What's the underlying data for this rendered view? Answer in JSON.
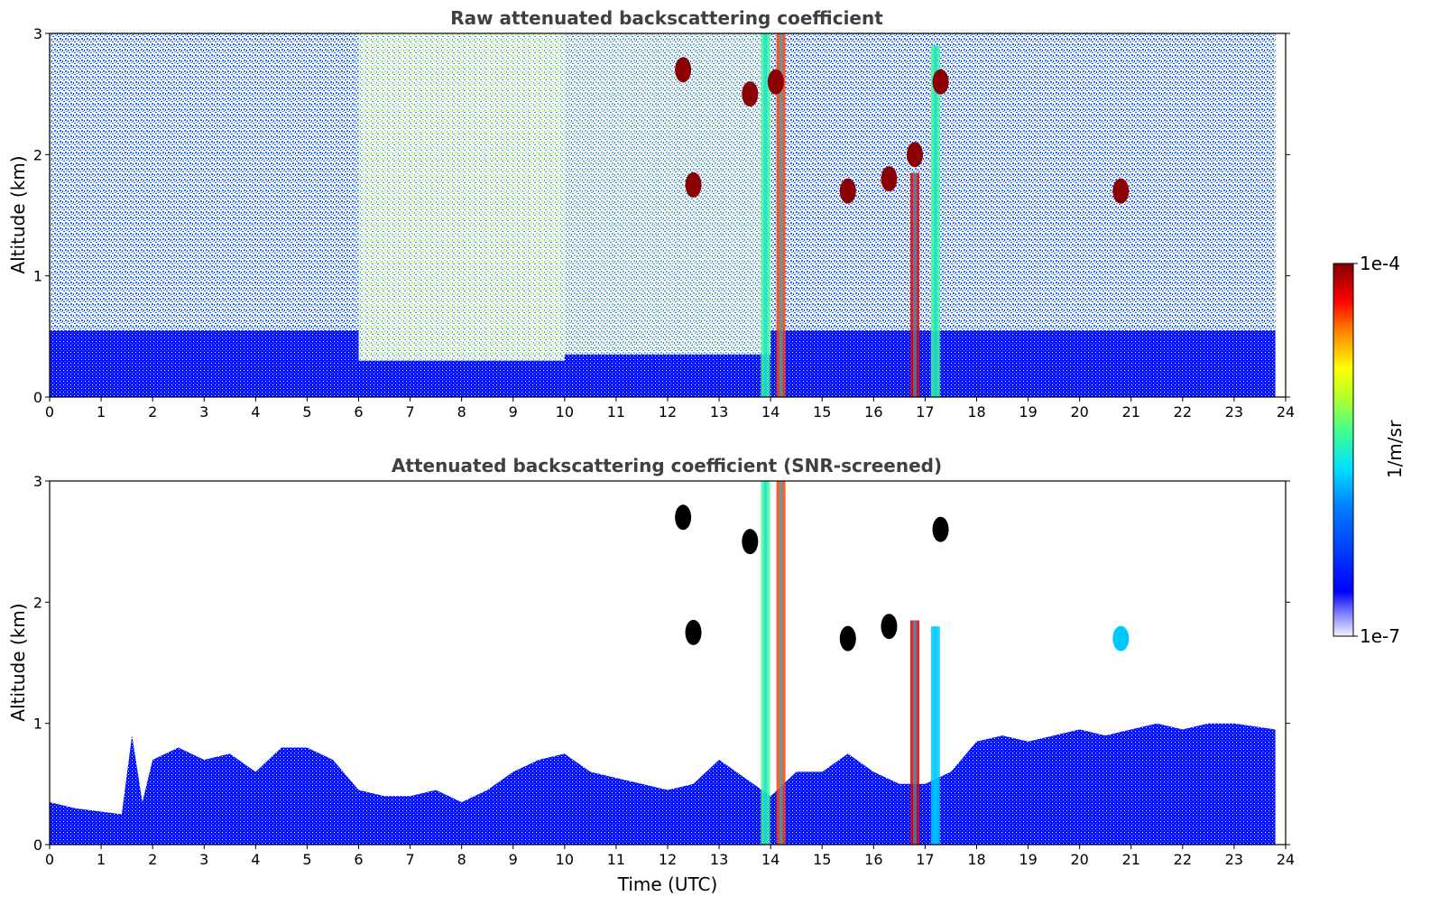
{
  "chart_data": [
    {
      "type": "heatmap",
      "title": "Raw attenuated backscattering coefficient",
      "xlabel": "",
      "ylabel": "Altitude (km)",
      "xlim": [
        0,
        24
      ],
      "ylim": [
        0,
        3
      ],
      "x_ticks": [
        "0",
        "1",
        "2",
        "3",
        "4",
        "5",
        "6",
        "7",
        "8",
        "9",
        "10",
        "11",
        "12",
        "13",
        "14",
        "15",
        "16",
        "17",
        "18",
        "19",
        "20",
        "21",
        "22",
        "23",
        "24"
      ],
      "y_ticks": [
        "0",
        "1",
        "2",
        "3"
      ],
      "data_end_time": 23.8,
      "background_layer": [
        {
          "x_start": 0,
          "x_end": 6,
          "top_km": 0.55,
          "noise_fill": "blue"
        },
        {
          "x_start": 6,
          "x_end": 10,
          "top_km": 0.3,
          "noise_fill": "green-yellow"
        },
        {
          "x_start": 10,
          "x_end": 14,
          "top_km": 0.35,
          "noise_fill": "cyan-blue"
        },
        {
          "x_start": 14,
          "x_end": 23.8,
          "top_km": 0.55,
          "noise_fill": "blue"
        }
      ],
      "plumes": [
        {
          "x": 13.9,
          "bottom_km": 0,
          "top_km": 3,
          "level": "cyan-yellow"
        },
        {
          "x": 14.2,
          "bottom_km": 0,
          "top_km": 3,
          "level": "cyan-red"
        },
        {
          "x": 16.8,
          "bottom_km": 0,
          "top_km": 1.85,
          "level": "red"
        },
        {
          "x": 17.2,
          "bottom_km": 0,
          "top_km": 2.9,
          "level": "cyan-yellow"
        }
      ],
      "cloud_patches": [
        {
          "x": 12.3,
          "y_km": 2.7,
          "level": "dark-red"
        },
        {
          "x": 12.5,
          "y_km": 1.75,
          "level": "dark-red"
        },
        {
          "x": 13.6,
          "y_km": 2.5,
          "level": "dark-red"
        },
        {
          "x": 14.1,
          "y_km": 2.6,
          "level": "dark-red"
        },
        {
          "x": 15.5,
          "y_km": 1.7,
          "level": "dark-red"
        },
        {
          "x": 16.3,
          "y_km": 1.8,
          "level": "dark-red"
        },
        {
          "x": 16.8,
          "y_km": 2.0,
          "level": "dark-red"
        },
        {
          "x": 17.3,
          "y_km": 2.6,
          "level": "dark-red"
        },
        {
          "x": 20.8,
          "y_km": 1.7,
          "level": "dark-red"
        }
      ]
    },
    {
      "type": "heatmap",
      "title": "Attenuated backscattering coefficient (SNR-screened)",
      "xlabel": "Time (UTC)",
      "ylabel": "Altitude (km)",
      "xlim": [
        0,
        24
      ],
      "ylim": [
        0,
        3
      ],
      "x_ticks": [
        "0",
        "1",
        "2",
        "3",
        "4",
        "5",
        "6",
        "7",
        "8",
        "9",
        "10",
        "11",
        "12",
        "13",
        "14",
        "15",
        "16",
        "17",
        "18",
        "19",
        "20",
        "21",
        "22",
        "23",
        "24"
      ],
      "y_ticks": [
        "0",
        "1",
        "2",
        "3"
      ],
      "data_end_time": 23.8,
      "boundary_layer_top_km": [
        [
          0,
          0.35
        ],
        [
          0.5,
          0.3
        ],
        [
          1.4,
          0.25
        ],
        [
          1.6,
          0.9
        ],
        [
          1.8,
          0.35
        ],
        [
          2.0,
          0.7
        ],
        [
          2.5,
          0.8
        ],
        [
          3.0,
          0.7
        ],
        [
          3.5,
          0.75
        ],
        [
          4.0,
          0.6
        ],
        [
          4.5,
          0.8
        ],
        [
          5.0,
          0.8
        ],
        [
          5.5,
          0.7
        ],
        [
          6.0,
          0.45
        ],
        [
          6.5,
          0.4
        ],
        [
          7.0,
          0.4
        ],
        [
          7.5,
          0.45
        ],
        [
          8.0,
          0.35
        ],
        [
          8.5,
          0.45
        ],
        [
          9.0,
          0.6
        ],
        [
          9.5,
          0.7
        ],
        [
          10.0,
          0.75
        ],
        [
          10.5,
          0.6
        ],
        [
          11.0,
          0.55
        ],
        [
          11.5,
          0.5
        ],
        [
          12.0,
          0.45
        ],
        [
          12.5,
          0.5
        ],
        [
          13.0,
          0.7
        ],
        [
          13.5,
          0.55
        ],
        [
          14.0,
          0.4
        ],
        [
          14.5,
          0.6
        ],
        [
          15.0,
          0.6
        ],
        [
          15.5,
          0.75
        ],
        [
          16.0,
          0.6
        ],
        [
          16.5,
          0.5
        ],
        [
          17.0,
          0.5
        ],
        [
          17.5,
          0.6
        ],
        [
          18.0,
          0.85
        ],
        [
          18.5,
          0.9
        ],
        [
          19.0,
          0.85
        ],
        [
          19.5,
          0.9
        ],
        [
          20.0,
          0.95
        ],
        [
          20.5,
          0.9
        ],
        [
          21.0,
          0.95
        ],
        [
          21.5,
          1.0
        ],
        [
          22.0,
          0.95
        ],
        [
          22.5,
          1.0
        ],
        [
          23.0,
          1.0
        ],
        [
          23.8,
          0.95
        ]
      ],
      "plumes": [
        {
          "x": 13.9,
          "bottom_km": 0,
          "top_km": 3,
          "level": "cyan-yellow"
        },
        {
          "x": 14.2,
          "bottom_km": 0,
          "top_km": 3,
          "level": "cyan-red"
        },
        {
          "x": 16.8,
          "bottom_km": 0,
          "top_km": 1.85,
          "level": "red"
        },
        {
          "x": 17.2,
          "bottom_km": 0,
          "top_km": 1.8,
          "level": "cyan"
        }
      ],
      "cloud_patches": [
        {
          "x": 12.3,
          "y_km": 2.7,
          "level": "black"
        },
        {
          "x": 12.5,
          "y_km": 1.75,
          "level": "black"
        },
        {
          "x": 13.6,
          "y_km": 2.5,
          "level": "black"
        },
        {
          "x": 15.5,
          "y_km": 1.7,
          "level": "black"
        },
        {
          "x": 16.3,
          "y_km": 1.8,
          "level": "black"
        },
        {
          "x": 17.3,
          "y_km": 2.6,
          "level": "black"
        },
        {
          "x": 20.8,
          "y_km": 1.7,
          "level": "cyan"
        }
      ]
    }
  ],
  "colorbar": {
    "label": "1/m/sr",
    "max_label": "1e-4",
    "min_label": "1e-7",
    "colormap": "jet",
    "scale": "log"
  }
}
